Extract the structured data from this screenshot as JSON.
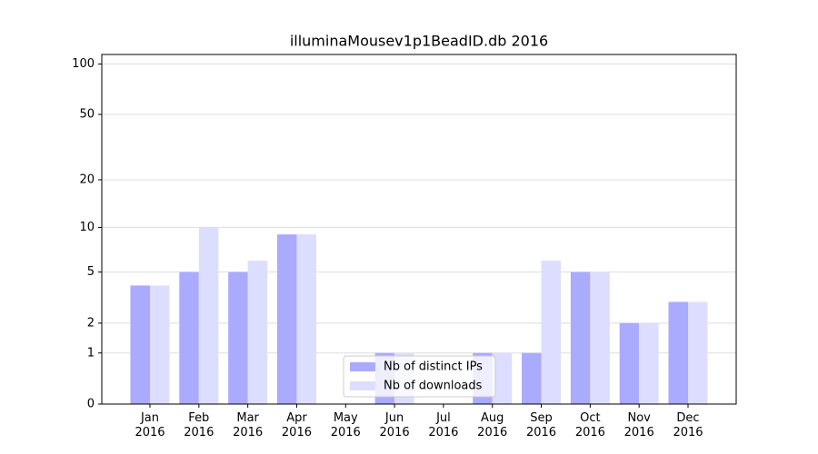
{
  "chart_data": {
    "type": "bar",
    "title": "illuminaMousev1p1BeadID.db 2016",
    "categories": [
      "Jan 2016",
      "Feb 2016",
      "Mar 2016",
      "Apr 2016",
      "May 2016",
      "Jun 2016",
      "Jul 2016",
      "Aug 2016",
      "Sep 2016",
      "Oct 2016",
      "Nov 2016",
      "Dec 2016"
    ],
    "series": [
      {
        "name": "Nb of distinct IPs",
        "color": "#aaaaff",
        "values": [
          4,
          5,
          5,
          9,
          0,
          1,
          0,
          1,
          1,
          5,
          2,
          3
        ]
      },
      {
        "name": "Nb of downloads",
        "color": "#ddddff",
        "values": [
          4,
          10,
          6,
          9,
          0,
          1,
          0,
          1,
          6,
          5,
          2,
          3
        ]
      }
    ],
    "yscale": "log1p",
    "ylim": [
      0,
      114
    ],
    "yticks": [
      0,
      1,
      2,
      5,
      10,
      20,
      50,
      100
    ],
    "grid": true,
    "legend": "lower center"
  }
}
